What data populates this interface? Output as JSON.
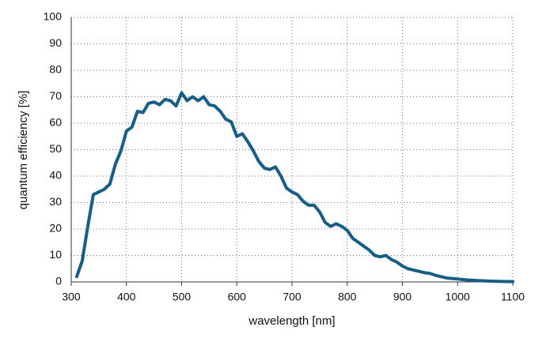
{
  "chart_data": {
    "type": "line",
    "x_label": "wavelength [nm]",
    "y_label": "quantum efficiency [%]",
    "x": [
      310,
      320,
      330,
      340,
      350,
      360,
      370,
      380,
      390,
      400,
      410,
      420,
      430,
      440,
      450,
      460,
      470,
      480,
      490,
      500,
      510,
      520,
      530,
      540,
      550,
      560,
      570,
      580,
      590,
      600,
      610,
      620,
      630,
      640,
      650,
      660,
      670,
      680,
      690,
      700,
      710,
      720,
      730,
      740,
      750,
      760,
      770,
      780,
      790,
      800,
      810,
      820,
      830,
      840,
      850,
      860,
      870,
      880,
      890,
      900,
      910,
      920,
      930,
      940,
      950,
      960,
      970,
      980,
      1000,
      1020,
      1040,
      1060,
      1080,
      1100
    ],
    "values": [
      2,
      8,
      21,
      33,
      34,
      35,
      37,
      44.5,
      49.5,
      57,
      58.5,
      64.5,
      64,
      67.5,
      68,
      67,
      69,
      68.5,
      66.5,
      71.5,
      68.5,
      70,
      68.5,
      70,
      67,
      66.5,
      64.5,
      61.5,
      60.5,
      55,
      56,
      53,
      49.5,
      45.5,
      43,
      42.5,
      43.5,
      40,
      35.5,
      34,
      33,
      30.5,
      29,
      29,
      26.5,
      22.5,
      21,
      22,
      21,
      19.5,
      16.5,
      15,
      13.5,
      12,
      10,
      9.5,
      10,
      8.5,
      7.5,
      6,
      5,
      4.5,
      4,
      3.5,
      3.2,
      2.5,
      2,
      1.5,
      1.1,
      0.7,
      0.5,
      0.3,
      0.2,
      0.1
    ],
    "color": "#135f8c",
    "xlim": [
      300,
      1100
    ],
    "xticks": [
      300,
      400,
      500,
      600,
      700,
      800,
      900,
      1000,
      1100
    ],
    "ylim": [
      0,
      100
    ],
    "yticks": [
      0,
      10,
      20,
      30,
      40,
      50,
      60,
      70,
      80,
      90,
      100
    ],
    "grid": true
  }
}
